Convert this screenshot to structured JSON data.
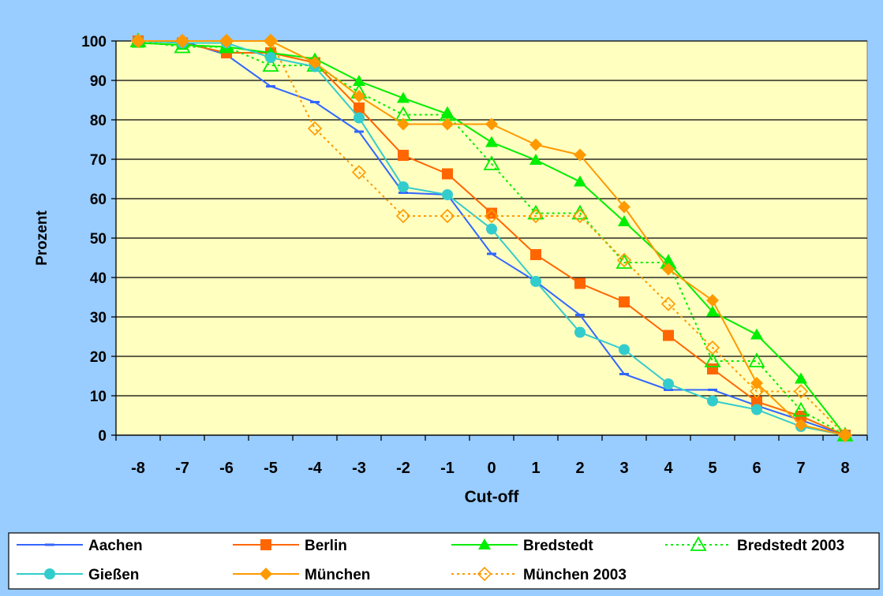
{
  "chart_data": {
    "type": "line",
    "xlabel": "Cut-off",
    "ylabel": "Prozent",
    "x": [
      -8,
      -7,
      -6,
      -5,
      -4,
      -3,
      -2,
      -1,
      0,
      1,
      2,
      3,
      4,
      5,
      6,
      7,
      8
    ],
    "ylim": [
      0,
      100
    ],
    "yticks": [
      0,
      10,
      20,
      30,
      40,
      50,
      60,
      70,
      80,
      90,
      100
    ],
    "grid": "horizontal",
    "legend_position": "bottom",
    "plot_background": "#ffffc0",
    "figure_background": "#99ccff",
    "series": [
      {
        "name": "Aachen",
        "color": "#3366ff",
        "marker": "dash",
        "dashed": false,
        "values": [
          100,
          100,
          96.5,
          88.5,
          84.5,
          77,
          61.5,
          61,
          46,
          39,
          30.5,
          15.5,
          11.5,
          11.5,
          7.5,
          3.8,
          0
        ]
      },
      {
        "name": "Berlin",
        "color": "#ff6600",
        "marker": "square",
        "dashed": false,
        "values": [
          100,
          99.5,
          97,
          97,
          94.5,
          83,
          71,
          66.3,
          56.3,
          45.8,
          38.5,
          33.8,
          25.3,
          16.8,
          8.5,
          4.8,
          0
        ]
      },
      {
        "name": "Bredstedt",
        "color": "#00ee00",
        "marker": "triangle",
        "dashed": false,
        "values": [
          99.5,
          99,
          98.5,
          97,
          95.5,
          89.8,
          85.5,
          81.5,
          74.3,
          69.8,
          64.3,
          54.2,
          43.8,
          31.3,
          25.5,
          14.3,
          0
        ]
      },
      {
        "name": "Bredstedt 2003",
        "color": "#00ee00",
        "marker": "triangle-open",
        "dashed": true,
        "values": [
          100,
          98.5,
          98.5,
          93.8,
          93.8,
          87,
          81.3,
          81.3,
          68.8,
          56.3,
          56.3,
          43.8,
          43.8,
          18.8,
          18.8,
          6.3,
          0
        ]
      },
      {
        "name": "Gießen",
        "color": "#33cccc",
        "marker": "circle",
        "dashed": false,
        "values": [
          100,
          99.5,
          99.5,
          95.8,
          93.5,
          80.5,
          63,
          61,
          52.3,
          39,
          26.1,
          21.7,
          13,
          8.7,
          6.5,
          2.2,
          0
        ]
      },
      {
        "name": "München",
        "color": "#ff9900",
        "marker": "diamond",
        "dashed": false,
        "values": [
          100,
          100,
          100,
          100,
          94.5,
          86,
          78.9,
          78.9,
          78.9,
          73.7,
          71.1,
          57.9,
          42.1,
          34.2,
          13.2,
          2.6,
          0
        ]
      },
      {
        "name": "München 2003",
        "color": "#ff9900",
        "marker": "diamond-open",
        "dashed": true,
        "values": [
          100,
          100,
          100,
          100,
          77.8,
          66.7,
          55.6,
          55.6,
          55.6,
          55.6,
          55.6,
          44.4,
          33.3,
          22.2,
          11.1,
          11.1,
          0
        ]
      }
    ]
  }
}
